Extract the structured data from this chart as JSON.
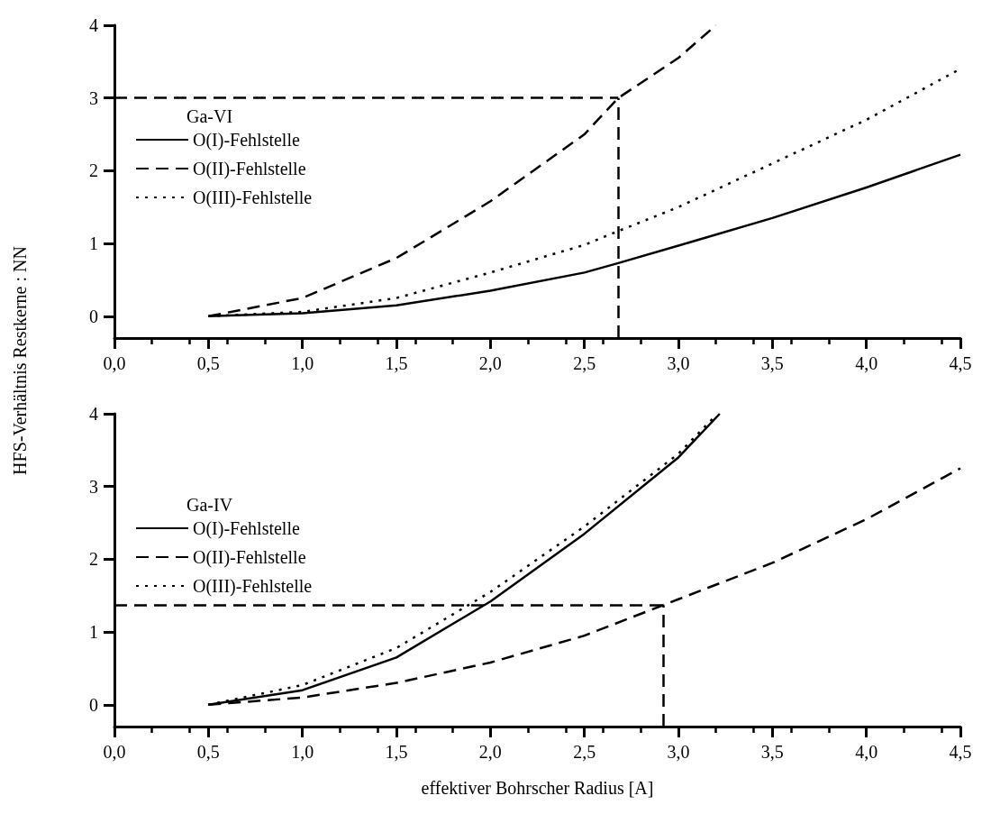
{
  "chart_data": [
    {
      "type": "line",
      "ylabel": "HFS-Verhältnis Restkerne : NN",
      "legend_title": "Ga-VI",
      "legend": "top left",
      "grid": false,
      "marker": "none",
      "xlim": [
        0,
        4.5
      ],
      "xticks": [
        {
          "value": 0,
          "label": "0,0"
        },
        {
          "value": 0.5,
          "label": "0,5"
        },
        {
          "value": 1,
          "label": "1,0"
        },
        {
          "value": 1.5,
          "label": "1,5"
        },
        {
          "value": 2,
          "label": "2,0"
        },
        {
          "value": 2.5,
          "label": "2,5"
        },
        {
          "value": 3,
          "label": "3,0"
        },
        {
          "value": 3.5,
          "label": "3,5"
        },
        {
          "value": 4,
          "label": "4,0"
        },
        {
          "value": 4.5,
          "label": "4,5"
        }
      ],
      "ylim": [
        -0.3,
        4
      ],
      "yticks": [
        0,
        1,
        2,
        3,
        4
      ],
      "series": [
        {
          "name": "O(I)-Fehlstelle",
          "color": "#000000",
          "line_style": "solid",
          "x": [
            0.5,
            1,
            1.5,
            2,
            2.5,
            2.68,
            3,
            3.5,
            4,
            4.5
          ],
          "values": [
            0,
            0.04,
            0.15,
            0.35,
            0.6,
            0.73,
            0.97,
            1.35,
            1.77,
            2.22
          ]
        },
        {
          "name": "O(II)-Fehlstelle",
          "color": "#000000",
          "line_style": "dashed",
          "x": [
            0.5,
            1,
            1.5,
            2,
            2.5,
            2.68,
            3,
            3.2
          ],
          "values": [
            0,
            0.25,
            0.8,
            1.58,
            2.5,
            3.0,
            3.55,
            4.0
          ]
        },
        {
          "name": "O(III)-Fehlstelle",
          "color": "#000000",
          "line_style": "dotted",
          "x": [
            0.5,
            1,
            1.5,
            2,
            2.5,
            2.68,
            3,
            3.5,
            4,
            4.5
          ],
          "values": [
            0,
            0.06,
            0.25,
            0.6,
            0.98,
            1.17,
            1.5,
            2.1,
            2.7,
            3.4
          ]
        }
      ],
      "ref_lines": [
        {
          "axis": "y",
          "value": 3,
          "color": "#000000",
          "line_style": "dashed"
        },
        {
          "axis": "x",
          "value": 2.68,
          "color": "#000000",
          "line_style": "dashed"
        }
      ]
    },
    {
      "type": "line",
      "xlabel": "effektiver Bohrscher Radius [A]",
      "legend_title": "Ga-IV",
      "legend": "top left",
      "grid": false,
      "marker": "none",
      "xlim": [
        0,
        4.5
      ],
      "xticks": [
        {
          "value": 0,
          "label": "0,0"
        },
        {
          "value": 0.5,
          "label": "0,5"
        },
        {
          "value": 1,
          "label": "1,0"
        },
        {
          "value": 1.5,
          "label": "1,5"
        },
        {
          "value": 2,
          "label": "2,0"
        },
        {
          "value": 2.5,
          "label": "2,5"
        },
        {
          "value": 3,
          "label": "3,0"
        },
        {
          "value": 3.5,
          "label": "3,5"
        },
        {
          "value": 4,
          "label": "4,0"
        },
        {
          "value": 4.5,
          "label": "4,5"
        }
      ],
      "ylim": [
        -0.3,
        4
      ],
      "yticks": [
        0,
        1,
        2,
        3,
        4
      ],
      "series": [
        {
          "name": "O(I)-Fehlstelle",
          "color": "#000000",
          "line_style": "solid",
          "x": [
            0.5,
            1,
            1.5,
            2,
            2.5,
            3,
            3.22
          ],
          "values": [
            0,
            0.2,
            0.65,
            1.42,
            2.35,
            3.4,
            4.0
          ]
        },
        {
          "name": "O(II)-Fehlstelle",
          "color": "#000000",
          "line_style": "dashed",
          "x": [
            0.5,
            1,
            1.5,
            2,
            2.5,
            2.92,
            3,
            3.5,
            4,
            4.5
          ],
          "values": [
            0,
            0.1,
            0.3,
            0.58,
            0.95,
            1.37,
            1.45,
            1.95,
            2.55,
            3.25
          ]
        },
        {
          "name": "O(III)-Fehlstelle",
          "color": "#000000",
          "line_style": "dotted",
          "x": [
            0.5,
            1,
            1.5,
            2,
            2.5,
            3,
            3.2
          ],
          "values": [
            0,
            0.27,
            0.78,
            1.55,
            2.45,
            3.45,
            3.98
          ]
        }
      ],
      "ref_lines": [
        {
          "axis": "y",
          "value": 1.37,
          "color": "#000000",
          "line_style": "dashed"
        },
        {
          "axis": "x",
          "value": 2.92,
          "color": "#000000",
          "line_style": "dashed"
        }
      ]
    }
  ]
}
